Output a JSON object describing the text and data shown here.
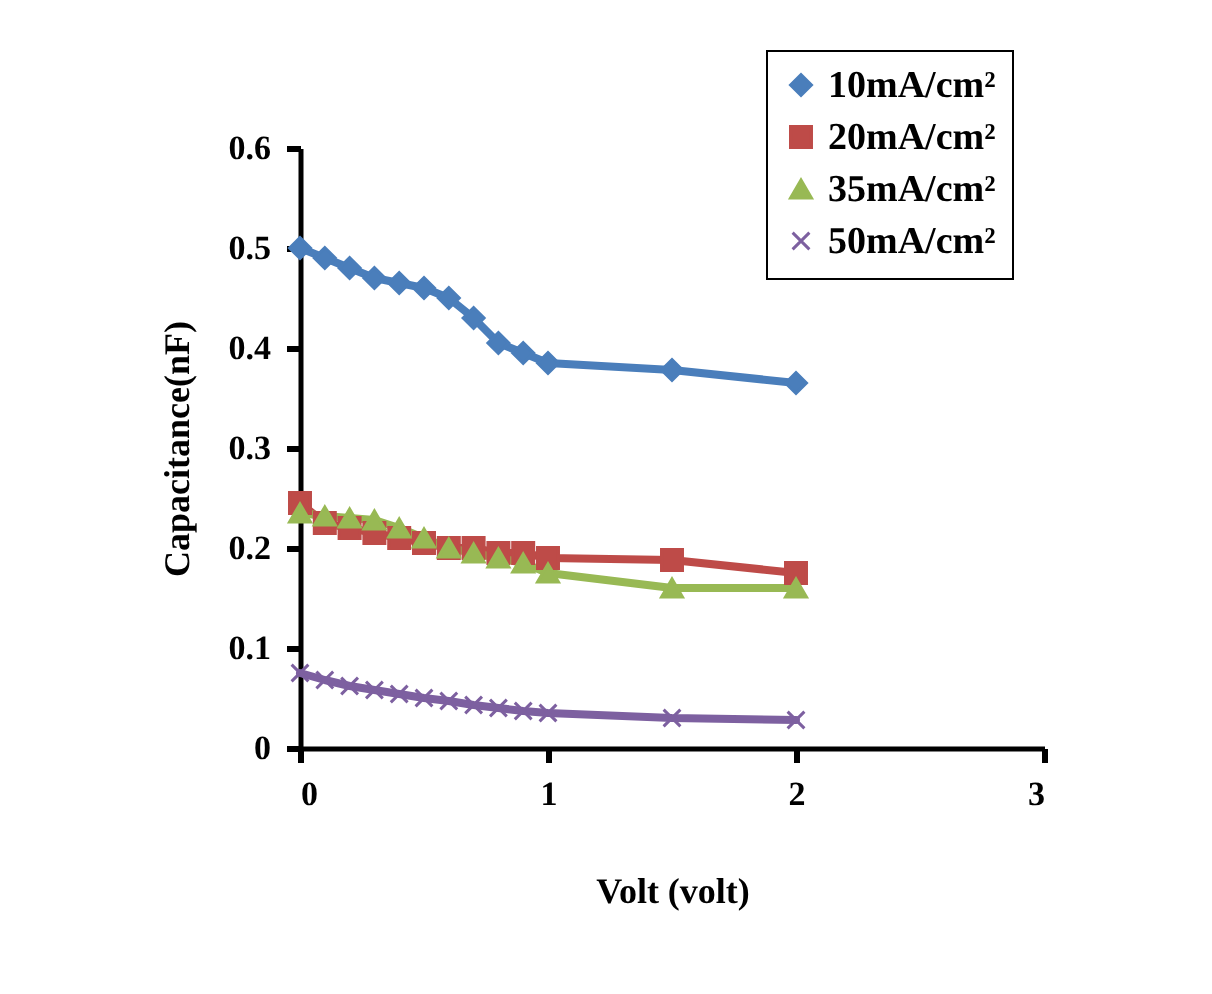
{
  "chart_data": {
    "type": "line",
    "xlabel": "Volt (volt)",
    "ylabel": "Capacitance(nF)",
    "x": [
      0,
      0.1,
      0.2,
      0.3,
      0.4,
      0.5,
      0.6,
      0.7,
      0.8,
      0.9,
      1.0,
      1.5,
      2
    ],
    "series": [
      {
        "name": "10mA/cm²",
        "color": "#4a7ebb",
        "marker": "diamond",
        "values": [
          0.5,
          0.49,
          0.48,
          0.47,
          0.465,
          0.46,
          0.45,
          0.43,
          0.405,
          0.395,
          0.385,
          0.378,
          0.365
        ]
      },
      {
        "name": "20mA/cm²",
        "color": "#be4b48",
        "marker": "square",
        "values": [
          0.245,
          0.225,
          0.22,
          0.215,
          0.21,
          0.205,
          0.2,
          0.2,
          0.195,
          0.195,
          0.19,
          0.188,
          0.175
        ]
      },
      {
        "name": "35mA/cm²",
        "color": "#98b954",
        "marker": "triangle",
        "values": [
          0.235,
          0.232,
          0.23,
          0.228,
          0.22,
          0.21,
          0.2,
          0.195,
          0.19,
          0.185,
          0.175,
          0.16,
          0.16
        ]
      },
      {
        "name": "50mA/cm²",
        "color": "#7d60a0",
        "marker": "cross",
        "values": [
          0.075,
          0.068,
          0.062,
          0.058,
          0.054,
          0.05,
          0.047,
          0.043,
          0.04,
          0.037,
          0.035,
          0.03,
          0.028
        ]
      }
    ],
    "xlim": [
      0,
      3
    ],
    "xticks": [
      0,
      1,
      2,
      3
    ],
    "ylim": [
      0,
      0.6
    ],
    "yticks": [
      0,
      0.1,
      0.2,
      0.3,
      0.4,
      0.5,
      0.6
    ],
    "legend": "top right",
    "grid": false,
    "line_style": "solid"
  }
}
